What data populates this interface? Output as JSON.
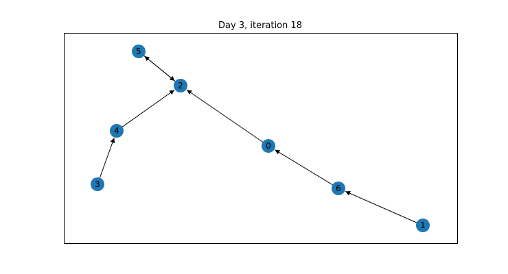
{
  "title": "Day 3, iteration 18",
  "colors": {
    "node": "#1f77b4",
    "edge": "#000000",
    "frame": "#000000",
    "background": "#ffffff"
  },
  "nodes": [
    {
      "id": "0",
      "label": "0"
    },
    {
      "id": "1",
      "label": "1"
    },
    {
      "id": "2",
      "label": "2"
    },
    {
      "id": "3",
      "label": "3"
    },
    {
      "id": "4",
      "label": "4"
    },
    {
      "id": "5",
      "label": "5"
    },
    {
      "id": "6",
      "label": "6"
    }
  ],
  "edges": [
    {
      "from": "1",
      "to": "6"
    },
    {
      "from": "6",
      "to": "0"
    },
    {
      "from": "0",
      "to": "2"
    },
    {
      "from": "3",
      "to": "4"
    },
    {
      "from": "4",
      "to": "2"
    },
    {
      "from": "5",
      "to": "2"
    },
    {
      "from": "2",
      "to": "5"
    }
  ]
}
